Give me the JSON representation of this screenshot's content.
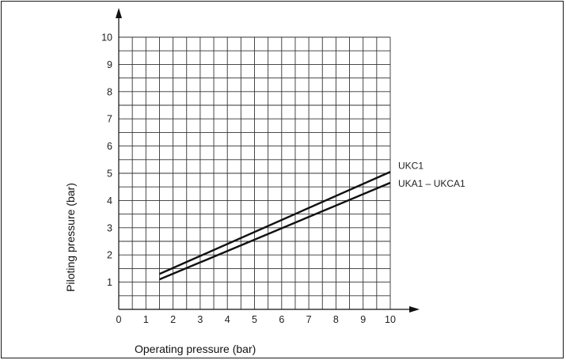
{
  "chart_data": {
    "type": "line",
    "xlabel": "Operating pressure (bar)",
    "ylabel": "Piloting pressure (bar)",
    "xlim": [
      0,
      10
    ],
    "ylim": [
      0,
      10
    ],
    "x_ticks": [
      "0",
      "1",
      "2",
      "3",
      "4",
      "5",
      "6",
      "7",
      "8",
      "9",
      "10"
    ],
    "y_ticks": [
      "1",
      "2",
      "3",
      "4",
      "5",
      "6",
      "7",
      "8",
      "9",
      "10"
    ],
    "grid": "on",
    "grid_minor_step": 0.5,
    "series": [
      {
        "name": "UKC1",
        "x": [
          1.5,
          10
        ],
        "y": [
          1.3,
          5.05
        ]
      },
      {
        "name": "UKA1 – UKCA1",
        "x": [
          1.5,
          10
        ],
        "y": [
          1.1,
          4.65
        ]
      }
    ]
  }
}
